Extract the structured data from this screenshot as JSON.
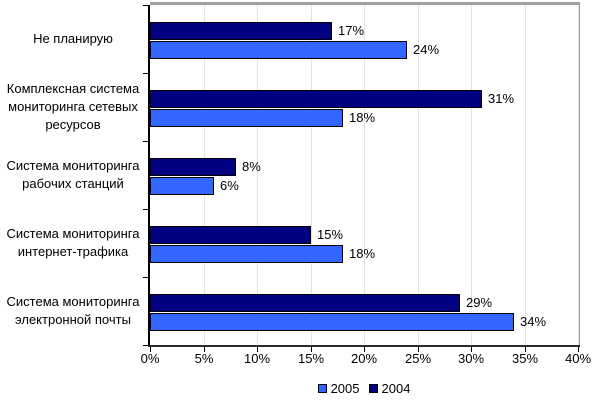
{
  "chart_data": {
    "type": "bar",
    "orientation": "horizontal",
    "categories": [
      "Не планирую",
      "Комплексная система мониторинга сетевых ресурсов",
      "Система мониторинга рабочих станций",
      "Система мониторинга интернет-трафика",
      "Система мониторинга электронной почты"
    ],
    "category_display_lines": [
      [
        "Не планирую"
      ],
      [
        "Комплексная система",
        "мониторинга сетевых",
        "ресурсов"
      ],
      [
        "Система мониторинга",
        "рабочих станций"
      ],
      [
        "Система мониторинга",
        "интернет-трафика"
      ],
      [
        "Система мониторинга",
        "электронной почты"
      ]
    ],
    "series": [
      {
        "name": "2004",
        "color": "#000080",
        "values": [
          17,
          31,
          8,
          15,
          29
        ]
      },
      {
        "name": "2005",
        "color": "#3366FF",
        "values": [
          24,
          18,
          6,
          18,
          34
        ]
      }
    ],
    "bar_order_top_to_bottom": [
      "2004",
      "2005"
    ],
    "data_label_suffix": "%",
    "xlim": [
      0,
      40
    ],
    "x_tick_labels": [
      "0%",
      "5%",
      "10%",
      "15%",
      "20%",
      "25%",
      "30%",
      "35%",
      "40%"
    ],
    "grid": true,
    "legend": {
      "position": "bottom",
      "entries": [
        {
          "label": "2005",
          "color": "#3366FF"
        },
        {
          "label": "2004",
          "color": "#000080"
        }
      ]
    },
    "colors": {
      "background": "#FFFFFF",
      "gridline": "#E9E4D0",
      "plot_border": "#A0A0A0",
      "axis": "#000000",
      "bar_border": "#000000",
      "text": "#000000"
    }
  }
}
